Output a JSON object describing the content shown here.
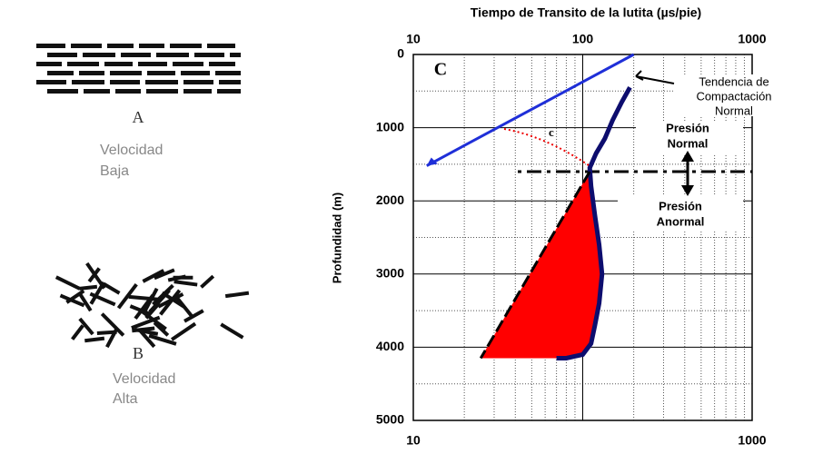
{
  "panels": [
    {
      "letter": "A",
      "caption": [
        "Velocidad",
        "Baja"
      ]
    },
    {
      "letter": "B",
      "caption": [
        "Velocidad",
        "Alta"
      ]
    }
  ],
  "chart_data": {
    "type": "line",
    "title": "Tiempo de Transito de la lutita (µs/pie)",
    "y_label": "Profundidad (m)",
    "panel_label": "C",
    "log_x": true,
    "y_inverted": true,
    "grid": true,
    "xlim": [
      10,
      1000
    ],
    "xticks": [
      10,
      100,
      1000
    ],
    "ylim": [
      0,
      5000
    ],
    "yticks": [
      0,
      1000,
      2000,
      3000,
      4000,
      5000
    ],
    "series": [
      {
        "color": "#1f2fd8",
        "x": [
          200,
          12
        ],
        "y": [
          0,
          1520
        ]
      },
      {
        "color": "#0d0d6e",
        "x": [
          190,
          170,
          150,
          135,
          120,
          110,
          112,
          118,
          125,
          130,
          125,
          118,
          112,
          100,
          80,
          70
        ],
        "y": [
          450,
          650,
          900,
          1150,
          1350,
          1550,
          1800,
          2200,
          2600,
          3000,
          3400,
          3700,
          3950,
          4100,
          4150,
          4150
        ]
      },
      {
        "color": "#000000",
        "x": [
          110,
          25
        ],
        "y": [
          1600,
          4150
        ]
      }
    ],
    "pressure_depth": 1600,
    "annotations": {
      "trend": [
        "Tendencia de",
        "Compactación",
        "Normal"
      ],
      "normal": [
        "Presión",
        "Normal"
      ],
      "abnormal": [
        "Presión",
        "Anormal"
      ],
      "angle": "c"
    }
  }
}
